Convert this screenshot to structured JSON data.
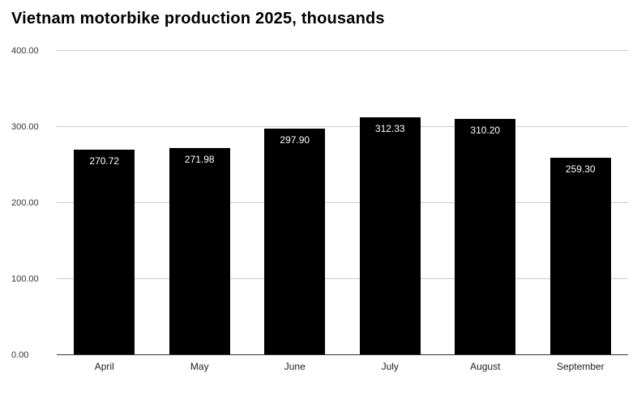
{
  "title": "Vietnam motorbike production 2025, thousands",
  "chart_data": {
    "type": "bar",
    "title": "Vietnam motorbike production 2025, thousands",
    "categories": [
      "April",
      "May",
      "June",
      "July",
      "August",
      "September"
    ],
    "values": [
      270.72,
      271.98,
      297.9,
      312.33,
      310.2,
      259.3
    ],
    "value_labels": [
      "270.72",
      "271.98",
      "297.90",
      "312.33",
      "310.20",
      "259.30"
    ],
    "xlabel": "",
    "ylabel": "",
    "ylim": [
      0,
      400
    ],
    "yticks": [
      "0.00",
      "100.00",
      "200.00",
      "300.00",
      "400.00"
    ],
    "grid": true,
    "legend": "none",
    "bar_color": "#000000",
    "value_label_color": "#ffffff",
    "gridline_color": "#cccccc",
    "baseline_color": "#333333"
  }
}
